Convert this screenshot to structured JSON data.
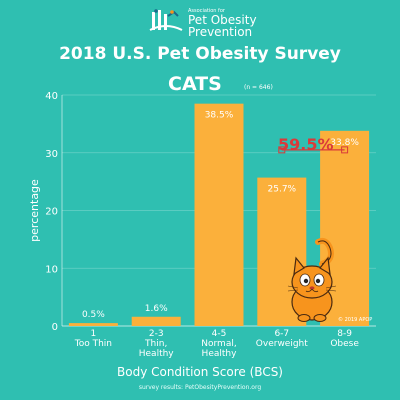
{
  "brand": {
    "assoc": "Association for",
    "line1": "Pet Obesity",
    "line2": "Prevention"
  },
  "header": {
    "title": "2018 U.S. Pet Obesity Survey",
    "subtitle": "CATS",
    "sample_note": "(n = 646)"
  },
  "callout": "59.5%",
  "copyright": "© 2019 APOP",
  "source": "survey results: PetObesityPrevention.org",
  "colors": {
    "background": "#2fbfb1",
    "bar": "#fbb03b",
    "callout": "#d93a3a",
    "text": "#ffffff"
  },
  "chart_data": {
    "type": "bar",
    "title": "2018 U.S. Pet Obesity Survey",
    "subtitle": "CATS",
    "xlabel": "Body Condition Score (BCS)",
    "ylabel": "percentage",
    "ylim": [
      0,
      40
    ],
    "yticks": [
      0,
      10,
      20,
      30,
      40
    ],
    "categories": [
      [
        "1",
        "Too Thin"
      ],
      [
        "2-3",
        "Thin,",
        "Healthy"
      ],
      [
        "4-5",
        "Normal,",
        "Healthy"
      ],
      [
        "6-7",
        "Overweight"
      ],
      [
        "8-9",
        "Obese"
      ]
    ],
    "values": [
      0.5,
      1.6,
      38.5,
      25.7,
      33.8
    ],
    "value_labels": [
      "0.5%",
      "1.6%",
      "38.5%",
      "25.7%",
      "33.8%"
    ],
    "grid": true
  }
}
